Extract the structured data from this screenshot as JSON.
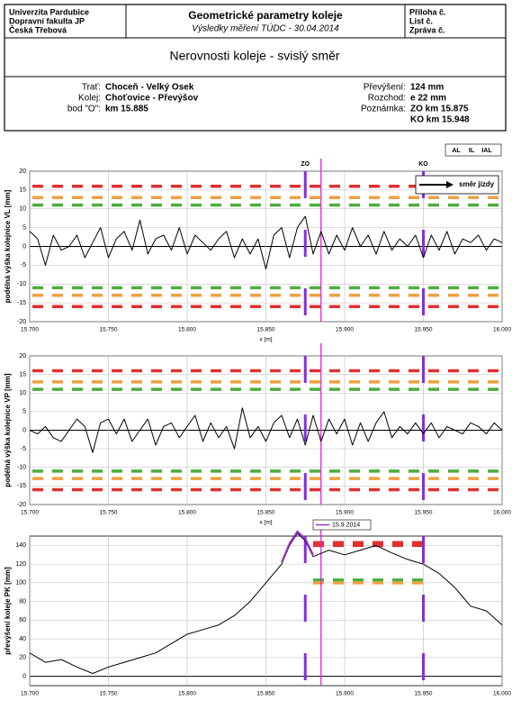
{
  "header": {
    "org": [
      "Univerzita Pardubice",
      "Dopravní fakulta JP",
      "Česká Třebová"
    ],
    "title": "Geometrické parametry koleje",
    "subtitle": "Výsledky měření TÚDC - 30.04.2014",
    "refs": [
      "Příloha č.",
      "List č.",
      "Zpráva č."
    ],
    "section": "Nerovnosti koleje - svislý směr",
    "left_info": [
      [
        "Trať:",
        "Choceň - Velký Osek"
      ],
      [
        "Kolej:",
        "Choťovice - Převýšov"
      ],
      [
        "bod \"O\":",
        "km 15.885"
      ]
    ],
    "right_info": [
      [
        "Převýšení:",
        "124 mm"
      ],
      [
        "Rozchod:",
        "e 22 mm"
      ],
      [
        "Poznámka:",
        "ZO km 15.875"
      ],
      [
        "",
        "KO km 15.948"
      ]
    ]
  },
  "chart_data": [
    {
      "type": "line",
      "ylabel": "podélná výška kolejnice VL [mm]",
      "xlabel": "x [m]",
      "x": [
        15.7,
        15.705,
        15.71,
        15.715,
        15.72,
        15.725,
        15.73,
        15.735,
        15.74,
        15.745,
        15.75,
        15.755,
        15.76,
        15.765,
        15.77,
        15.775,
        15.78,
        15.785,
        15.79,
        15.795,
        15.8,
        15.805,
        15.81,
        15.815,
        15.82,
        15.825,
        15.83,
        15.835,
        15.84,
        15.845,
        15.85,
        15.855,
        15.86,
        15.865,
        15.87,
        15.875,
        15.88,
        15.885,
        15.89,
        15.895,
        15.9,
        15.905,
        15.91,
        15.915,
        15.92,
        15.925,
        15.93,
        15.935,
        15.94,
        15.945,
        15.95,
        15.955,
        15.96,
        15.965,
        15.97,
        15.975,
        15.98,
        15.985,
        15.99,
        15.995,
        16.0
      ],
      "series": [
        {
          "color": "#000000",
          "values": [
            4,
            2,
            -5,
            3,
            -1,
            0,
            3,
            -3,
            1,
            5,
            -3,
            2,
            4,
            -1,
            7,
            -2,
            2,
            3,
            -1,
            5,
            -2,
            3,
            1,
            -1,
            2,
            4,
            -3,
            2,
            -2,
            2,
            -6,
            3,
            5,
            -3,
            5,
            8,
            -2,
            4,
            -2,
            3,
            -1,
            5,
            0,
            3,
            -2,
            4,
            -1,
            2,
            0,
            3,
            -3,
            3,
            -1,
            4,
            -2,
            2,
            1,
            3,
            -1,
            2,
            1
          ]
        }
      ],
      "xlim": [
        15.7,
        16.0
      ],
      "ylim": [
        -20,
        20
      ],
      "yticks": [
        -20,
        -15,
        -10,
        -5,
        0,
        5,
        10,
        15,
        20
      ],
      "xticks": [
        {
          "value": 15.7,
          "label": "15.700"
        },
        {
          "value": 15.75,
          "label": "15.750"
        },
        {
          "value": 15.8,
          "label": "15.800"
        },
        {
          "value": 15.85,
          "label": "15.850"
        },
        {
          "value": 15.9,
          "label": "15.900"
        },
        {
          "value": 15.95,
          "label": "15.950"
        },
        {
          "value": 16.0,
          "label": "16.000"
        }
      ],
      "limits": [
        {
          "name": "AL",
          "color": "#4cae3c",
          "values": [
            11,
            -11
          ]
        },
        {
          "name": "IL",
          "color": "#f0a040",
          "values": [
            13,
            -13
          ]
        },
        {
          "name": "IAL",
          "color": "#e03030",
          "values": [
            16,
            -16
          ]
        }
      ],
      "markers": [
        {
          "label": "ZO",
          "x": 15.875
        },
        {
          "label": "KO",
          "x": 15.95
        }
      ],
      "cursor_x": 15.885,
      "direction_label": "směr jízdy",
      "grid": true
    },
    {
      "type": "line",
      "ylabel": "podélná výška kolejnice VP [mm]",
      "xlabel": "x [m]",
      "x": [
        15.7,
        15.705,
        15.71,
        15.715,
        15.72,
        15.725,
        15.73,
        15.735,
        15.74,
        15.745,
        15.75,
        15.755,
        15.76,
        15.765,
        15.77,
        15.775,
        15.78,
        15.785,
        15.79,
        15.795,
        15.8,
        15.805,
        15.81,
        15.815,
        15.82,
        15.825,
        15.83,
        15.835,
        15.84,
        15.845,
        15.85,
        15.855,
        15.86,
        15.865,
        15.87,
        15.875,
        15.88,
        15.885,
        15.89,
        15.895,
        15.9,
        15.905,
        15.91,
        15.915,
        15.92,
        15.925,
        15.93,
        15.935,
        15.94,
        15.945,
        15.95,
        15.955,
        15.96,
        15.965,
        15.97,
        15.975,
        15.98,
        15.985,
        15.99,
        15.995,
        16.0
      ],
      "series": [
        {
          "color": "#000000",
          "values": [
            0,
            -1,
            1,
            -2,
            -3,
            0,
            3,
            1,
            -6,
            2,
            3,
            -1,
            3,
            -3,
            0,
            3,
            -4,
            1,
            2,
            -2,
            1,
            4,
            -3,
            2,
            -2,
            1,
            -5,
            6,
            -2,
            1,
            -3,
            2,
            4,
            -2,
            3,
            -4,
            4,
            -3,
            3,
            -1,
            3,
            -4,
            2,
            -3,
            2,
            5,
            -2,
            1,
            -1,
            2,
            -1,
            2,
            -2,
            1,
            0,
            -1,
            2,
            1,
            -1,
            2,
            0
          ]
        }
      ],
      "xlim": [
        15.7,
        16.0
      ],
      "ylim": [
        -20,
        20
      ],
      "yticks": [
        -20,
        -15,
        -10,
        -5,
        0,
        5,
        10,
        15,
        20
      ],
      "xticks": [
        {
          "value": 15.7,
          "label": "15.700"
        },
        {
          "value": 15.75,
          "label": "15.750"
        },
        {
          "value": 15.8,
          "label": "15.800"
        },
        {
          "value": 15.85,
          "label": "15.850"
        },
        {
          "value": 15.9,
          "label": "15.900"
        },
        {
          "value": 15.95,
          "label": "15.950"
        },
        {
          "value": 16.0,
          "label": "16.000"
        }
      ],
      "limits": [
        {
          "color": "#4cae3c",
          "values": [
            11,
            -11
          ]
        },
        {
          "color": "#f0a040",
          "values": [
            13,
            -13
          ]
        },
        {
          "color": "#e03030",
          "values": [
            16,
            -16
          ]
        }
      ],
      "markers_x": [
        15.875,
        15.95
      ],
      "cursor_x": 15.885,
      "grid": true
    },
    {
      "type": "line",
      "ylabel": "převýšení koleje PK [mm]",
      "x": [
        15.7,
        15.71,
        15.72,
        15.73,
        15.74,
        15.75,
        15.76,
        15.77,
        15.78,
        15.79,
        15.8,
        15.81,
        15.82,
        15.83,
        15.84,
        15.85,
        15.86,
        15.865,
        15.87,
        15.875,
        15.88,
        15.89,
        15.9,
        15.91,
        15.92,
        15.93,
        15.94,
        15.95,
        15.96,
        15.97,
        15.98,
        15.99,
        16.0
      ],
      "series": [
        {
          "color": "#000000",
          "values": [
            25,
            15,
            18,
            10,
            3,
            10,
            15,
            20,
            25,
            35,
            45,
            50,
            55,
            65,
            80,
            100,
            120,
            140,
            153,
            145,
            128,
            135,
            130,
            135,
            140,
            132,
            125,
            120,
            110,
            95,
            75,
            70,
            55
          ]
        },
        {
          "name": "15.9.2014",
          "color": "#9b30c8",
          "values": [
            null,
            null,
            null,
            null,
            null,
            null,
            null,
            null,
            null,
            null,
            null,
            null,
            null,
            null,
            null,
            null,
            122,
            142,
            155,
            147,
            130,
            null,
            null,
            null,
            null,
            null,
            null,
            null,
            null,
            null,
            null,
            null,
            null
          ]
        }
      ],
      "xlim": [
        15.7,
        16.0
      ],
      "ylim": [
        -10,
        150
      ],
      "yticks": [
        0,
        20,
        40,
        60,
        80,
        100,
        120,
        140
      ],
      "xticks": [
        {
          "value": 15.7,
          "label": "15.700"
        },
        {
          "value": 15.75,
          "label": "15.750"
        },
        {
          "value": 15.8,
          "label": "15.800"
        },
        {
          "value": 15.85,
          "label": "15.850"
        },
        {
          "value": 15.9,
          "label": "15.900"
        },
        {
          "value": 15.95,
          "label": "15.950"
        },
        {
          "value": 16.0,
          "label": "16.000"
        }
      ],
      "limits": [
        {
          "color": "#e03030",
          "values": [
            143,
            140
          ],
          "xrange": [
            15.88,
            15.95
          ]
        },
        {
          "color": "#4cae3c",
          "values": [
            103
          ],
          "xrange": [
            15.88,
            15.95
          ]
        },
        {
          "color": "#f0a040",
          "values": [
            100
          ],
          "xrange": [
            15.88,
            15.95
          ]
        }
      ],
      "markers_x": [
        15.875,
        15.95
      ],
      "cursor_x": 15.885,
      "grid": true
    }
  ]
}
